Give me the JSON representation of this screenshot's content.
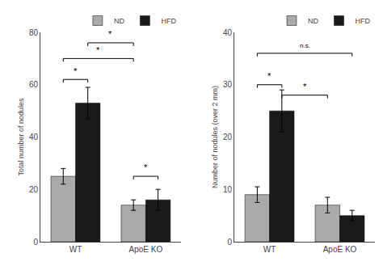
{
  "chart_data": [
    {
      "type": "bar",
      "ylabel": "Total number of nodules",
      "categories": [
        "WT",
        "ApoE KO"
      ],
      "series": [
        {
          "name": "ND",
          "color": "#aaaaaa",
          "values": [
            25,
            14
          ],
          "errors": [
            3,
            2
          ]
        },
        {
          "name": "HFD",
          "color": "#1a1a1a",
          "values": [
            53,
            16
          ],
          "errors": [
            6,
            4
          ]
        }
      ],
      "ylim": [
        0,
        80
      ],
      "yticks": [
        0,
        20,
        40,
        60,
        80
      ],
      "grid": false,
      "legend": "upper right",
      "annotations": [
        {
          "text": "*",
          "y": 62,
          "from": {
            "category": "WT",
            "series": "ND"
          },
          "to": {
            "category": "WT",
            "series": "HFD"
          }
        },
        {
          "text": "*",
          "y": 70,
          "from": {
            "category": "WT",
            "series": "ND"
          },
          "to": {
            "category": "ApoE KO",
            "series": "ND"
          }
        },
        {
          "text": "*",
          "y": 76,
          "from": {
            "category": "WT",
            "series": "HFD"
          },
          "to": {
            "category": "ApoE KO",
            "series": "ND"
          }
        },
        {
          "text": "*",
          "y": 25,
          "from": {
            "category": "ApoE KO",
            "series": "ND"
          },
          "to": {
            "category": "ApoE KO",
            "series": "HFD"
          }
        }
      ]
    },
    {
      "type": "bar",
      "ylabel": "Number of nodules (over 2 mm)",
      "categories": [
        "WT",
        "ApoE KO"
      ],
      "series": [
        {
          "name": "ND",
          "color": "#aaaaaa",
          "values": [
            9,
            7
          ],
          "errors": [
            1.5,
            1.5
          ]
        },
        {
          "name": "HFD",
          "color": "#1a1a1a",
          "values": [
            25,
            5
          ],
          "errors": [
            4,
            1
          ]
        }
      ],
      "ylim": [
        0,
        40
      ],
      "yticks": [
        0,
        10,
        20,
        30,
        40
      ],
      "grid": false,
      "legend": "upper right",
      "annotations": [
        {
          "text": "n.s.",
          "y": 36,
          "from": {
            "category": "WT",
            "series": "ND"
          },
          "to": {
            "category": "ApoE KO",
            "series": "HFD"
          }
        },
        {
          "text": "*",
          "y": 30,
          "from": {
            "category": "WT",
            "series": "ND"
          },
          "to": {
            "category": "WT",
            "series": "HFD"
          }
        },
        {
          "text": "*",
          "y": 28,
          "from": {
            "category": "WT",
            "series": "HFD"
          },
          "to": {
            "category": "ApoE KO",
            "series": "ND"
          }
        }
      ]
    }
  ]
}
